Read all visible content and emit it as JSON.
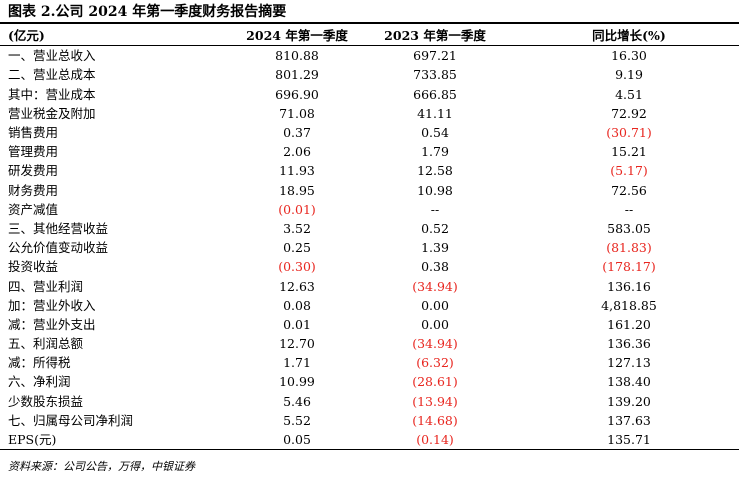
{
  "title": "图表 2.公司 2024 年第一季度财务报告摘要",
  "table": {
    "headers": [
      "(亿元)",
      "2024 年第一季度",
      "2023 年第一季度",
      "同比增长(%)"
    ],
    "rows": [
      {
        "item": "一、营业总收入",
        "q2024": "810.88",
        "q2023": "697.21",
        "yoy": "16.30"
      },
      {
        "item": "二、营业总成本",
        "q2024": "801.29",
        "q2023": "733.85",
        "yoy": "9.19"
      },
      {
        "item": "其中：营业成本",
        "q2024": "696.90",
        "q2023": "666.85",
        "yoy": "4.51"
      },
      {
        "item": "营业税金及附加",
        "q2024": "71.08",
        "q2023": "41.11",
        "yoy": "72.92"
      },
      {
        "item": "销售费用",
        "q2024": "0.37",
        "q2023": "0.54",
        "yoy": "(30.71)"
      },
      {
        "item": "管理费用",
        "q2024": "2.06",
        "q2023": "1.79",
        "yoy": "15.21"
      },
      {
        "item": "研发费用",
        "q2024": "11.93",
        "q2023": "12.58",
        "yoy": "(5.17)"
      },
      {
        "item": "财务费用",
        "q2024": "18.95",
        "q2023": "10.98",
        "yoy": "72.56"
      },
      {
        "item": "资产减值",
        "q2024": "(0.01)",
        "q2023": "--",
        "yoy": "--"
      },
      {
        "item": "三、其他经营收益",
        "q2024": "3.52",
        "q2023": "0.52",
        "yoy": "583.05"
      },
      {
        "item": "公允价值变动收益",
        "q2024": "0.25",
        "q2023": "1.39",
        "yoy": "(81.83)"
      },
      {
        "item": "投资收益",
        "q2024": "(0.30)",
        "q2023": "0.38",
        "yoy": "(178.17)"
      },
      {
        "item": "四、营业利润",
        "q2024": "12.63",
        "q2023": "(34.94)",
        "yoy": "136.16"
      },
      {
        "item": "加：营业外收入",
        "q2024": "0.08",
        "q2023": "0.00",
        "yoy": "4,818.85"
      },
      {
        "item": "减：营业外支出",
        "q2024": "0.01",
        "q2023": "0.00",
        "yoy": "161.20"
      },
      {
        "item": "五、利润总额",
        "q2024": "12.70",
        "q2023": "(34.94)",
        "yoy": "136.36"
      },
      {
        "item": "减：所得税",
        "q2024": "1.71",
        "q2023": "(6.32)",
        "yoy": "127.13"
      },
      {
        "item": "六、净利润",
        "q2024": "10.99",
        "q2023": "(28.61)",
        "yoy": "138.40"
      },
      {
        "item": "少数股东损益",
        "q2024": "5.46",
        "q2023": "(13.94)",
        "yoy": "139.20"
      },
      {
        "item": "七、归属母公司净利润",
        "q2024": "5.52",
        "q2023": "(14.68)",
        "yoy": "137.63"
      },
      {
        "item": "EPS(元)",
        "q2024": "0.05",
        "q2023": "(0.14)",
        "yoy": "135.71"
      }
    ]
  },
  "source": "资料来源：公司公告，万得，中银证券",
  "colors": {
    "negative": "#e8261f",
    "text": "#000000",
    "rule": "#000000"
  }
}
